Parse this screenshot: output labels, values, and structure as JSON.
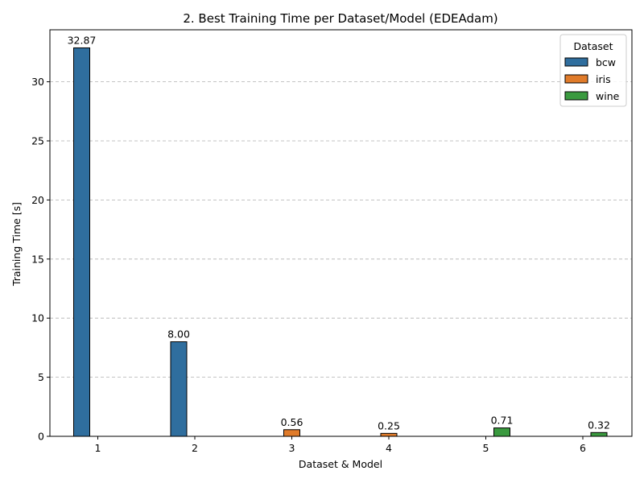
{
  "chart_data": {
    "type": "bar",
    "title": "2. Best Training Time per Dataset/Model (EDEAdam)",
    "xlabel": "Dataset & Model",
    "ylabel": "Training Time [s]",
    "ylim": [
      0,
      34.4
    ],
    "yticks": [
      0,
      5,
      10,
      15,
      20,
      25,
      30
    ],
    "categories": [
      "1",
      "2",
      "3",
      "4",
      "5",
      "6"
    ],
    "grid": "y-dashed",
    "legend": {
      "title": "Dataset",
      "placement": "top-right",
      "entries": [
        "bcw",
        "iris",
        "wine"
      ]
    },
    "series": [
      {
        "name": "bcw",
        "color": "#2f6e9e",
        "values": [
          32.87,
          8.0,
          null,
          null,
          null,
          null
        ]
      },
      {
        "name": "iris",
        "color": "#e07b2a",
        "values": [
          null,
          null,
          0.56,
          0.25,
          null,
          null
        ]
      },
      {
        "name": "wine",
        "color": "#3a9a3f",
        "values": [
          null,
          null,
          null,
          null,
          0.71,
          0.32
        ]
      }
    ],
    "data_labels": [
      "32.87",
      "8.00",
      "0.56",
      "0.25",
      "0.71",
      "0.32"
    ]
  }
}
